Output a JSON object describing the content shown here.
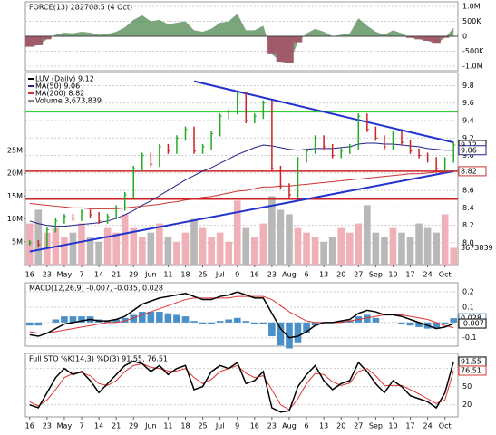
{
  "chart_data": {
    "type": "stock",
    "force": {
      "title": "FORCE(13) 282708.5 (4 Oct)",
      "ylim": [
        -1150000,
        1150000
      ],
      "yticks": [
        {
          "value": 1000000,
          "label": "1.0M"
        },
        {
          "value": 500000,
          "label": "500K"
        },
        0,
        {
          "value": -500000,
          "label": "-500K"
        },
        {
          "value": -1000000,
          "label": "-1.0M"
        }
      ],
      "last_label": "282708.5",
      "color": "#5a8f5a",
      "neg_color": "#a05a6a",
      "values": [
        -350000,
        -300000,
        -100000,
        50000,
        120000,
        100000,
        150000,
        120000,
        50000,
        80000,
        150000,
        300000,
        550000,
        700000,
        500000,
        550000,
        400000,
        450000,
        500000,
        200000,
        150000,
        250000,
        450000,
        500000,
        750000,
        200000,
        200000,
        350000,
        -600000,
        -850000,
        -900000,
        -200000,
        100000,
        250000,
        150000,
        0,
        50000,
        100000,
        600000,
        350000,
        150000,
        50000,
        200000,
        100000,
        -50000,
        -100000,
        -150000,
        -250000,
        -50000,
        282708.5
      ]
    },
    "price": {
      "legend": [
        "LUV (Daily) 9.12",
        "MA(50) 9.06",
        "MA(200) 8.82",
        "Volume 3,673,839"
      ],
      "ylim": [
        7.75,
        9.95
      ],
      "yticks": [
        {
          "value": 8.0,
          "label": "8.0"
        },
        8.2,
        8.4,
        8.6,
        8.8,
        {
          "value": 9.0,
          "label": "9.0"
        },
        9.2,
        9.4,
        9.6,
        9.8
      ],
      "vlim": [
        0,
        42000000
      ],
      "vticks": [
        {
          "value": 5000000,
          "label": "5M"
        },
        {
          "value": 10000000,
          "label": "10M"
        },
        {
          "value": 15000000,
          "label": "15M"
        },
        {
          "value": 20000000,
          "label": "20M"
        },
        {
          "value": 25000000,
          "label": "25M"
        }
      ],
      "tags": [
        {
          "value": 9.12,
          "label": "9.12"
        },
        {
          "value": 9.06,
          "label": "9.06"
        },
        {
          "value": 8.82,
          "label": "8.82"
        }
      ],
      "volume_tag": "3673839",
      "levels": [
        {
          "value": 9.5,
          "color": "#33cc33"
        },
        {
          "value": 8.82,
          "color": "#cc2222"
        },
        {
          "value": 8.5,
          "color": "#cc2222"
        }
      ],
      "trendlines": [
        {
          "from": [
            0,
            7.9
          ],
          "to": [
            49,
            8.82
          ],
          "color": "#2233cc"
        },
        {
          "from": [
            19,
            9.85
          ],
          "to": [
            49,
            9.15
          ],
          "color": "#2233cc"
        }
      ],
      "up_color": "#22aa22",
      "down_color": "#cc2222",
      "values": [
        8.0,
        7.98,
        8.15,
        8.25,
        8.3,
        8.28,
        8.35,
        8.32,
        8.25,
        8.3,
        8.4,
        8.55,
        8.85,
        9.0,
        8.9,
        9.1,
        9.05,
        9.2,
        9.3,
        9.05,
        9.1,
        9.25,
        9.45,
        9.5,
        9.7,
        9.4,
        9.45,
        9.6,
        8.85,
        8.65,
        8.55,
        8.95,
        9.05,
        9.2,
        9.1,
        9.0,
        9.05,
        9.1,
        9.45,
        9.3,
        9.2,
        9.1,
        9.25,
        9.15,
        9.05,
        9.0,
        8.95,
        8.85,
        8.95,
        9.12
      ],
      "ma50": {
        "color": "#222288",
        "values": [
          8.25,
          8.22,
          8.2,
          8.19,
          8.19,
          8.2,
          8.21,
          8.22,
          8.23,
          8.25,
          8.28,
          8.32,
          8.37,
          8.43,
          8.48,
          8.54,
          8.6,
          8.66,
          8.72,
          8.77,
          8.82,
          8.86,
          8.91,
          8.96,
          9.01,
          9.05,
          9.09,
          9.12,
          9.11,
          9.09,
          9.07,
          9.06,
          9.07,
          9.08,
          9.08,
          9.08,
          9.09,
          9.1,
          9.13,
          9.14,
          9.14,
          9.13,
          9.13,
          9.12,
          9.11,
          9.1,
          9.08,
          9.07,
          9.06,
          9.06
        ]
      },
      "ma200": {
        "color": "#cc3333",
        "values": [
          8.45,
          8.44,
          8.43,
          8.42,
          8.41,
          8.4,
          8.4,
          8.39,
          8.39,
          8.39,
          8.39,
          8.4,
          8.41,
          8.42,
          8.43,
          8.44,
          8.46,
          8.47,
          8.49,
          8.5,
          8.52,
          8.53,
          8.55,
          8.57,
          8.59,
          8.6,
          8.62,
          8.64,
          8.64,
          8.65,
          8.65,
          8.66,
          8.67,
          8.68,
          8.69,
          8.7,
          8.71,
          8.72,
          8.73,
          8.74,
          8.75,
          8.76,
          8.77,
          8.78,
          8.79,
          8.79,
          8.8,
          8.81,
          8.81,
          8.82
        ]
      },
      "volume": [
        9000000,
        12000000,
        7000000,
        8000000,
        6000000,
        7000000,
        9000000,
        6000000,
        5000000,
        8000000,
        7000000,
        11000000,
        8000000,
        6000000,
        7000000,
        9000000,
        6000000,
        5000000,
        7000000,
        10000000,
        8000000,
        6000000,
        7000000,
        5000000,
        14000000,
        8000000,
        6000000,
        9000000,
        15000000,
        12000000,
        11000000,
        8000000,
        7000000,
        6000000,
        5000000,
        6000000,
        8000000,
        7000000,
        9000000,
        13000000,
        7000000,
        6000000,
        8000000,
        7000000,
        6000000,
        9000000,
        8000000,
        7000000,
        11000000,
        3673839
      ],
      "volume_up": "#f0b0b8",
      "volume_down": "#b8b8b8"
    },
    "categories": [
      "16",
      null,
      "23",
      null,
      "May",
      null,
      "7",
      null,
      "14",
      null,
      "21",
      null,
      "29",
      null,
      "Jun",
      null,
      "11",
      null,
      "18",
      null,
      "25",
      null,
      "Jul",
      null,
      "9",
      null,
      "16",
      null,
      "23",
      null,
      "Aug",
      null,
      "6",
      null,
      "13",
      null,
      "20",
      null,
      "27",
      null,
      "Sep",
      null,
      "10",
      null,
      "17",
      null,
      "24",
      null,
      "Oct",
      null
    ],
    "macd": {
      "title": "MACD(12,26,9) -0.007, -0.035, 0.028",
      "ylim": [
        -0.155,
        0.26
      ],
      "yticks": [
        0.2,
        0.1,
        {
          "value": 0.0,
          "label": "0.0"
        },
        -0.1
      ],
      "tags": [
        {
          "value": 0.028,
          "label": "0.028"
        },
        {
          "value": -0.007,
          "label": "-0.007"
        }
      ],
      "line_color": "#000000",
      "signal_color": "#dd3333",
      "hist_color": "#4a90c8",
      "values": [
        -0.08,
        -0.09,
        -0.07,
        -0.04,
        -0.01,
        0.0,
        0.01,
        0.02,
        0.01,
        0.01,
        0.02,
        0.04,
        0.08,
        0.12,
        0.14,
        0.16,
        0.17,
        0.18,
        0.19,
        0.17,
        0.15,
        0.15,
        0.17,
        0.18,
        0.2,
        0.18,
        0.16,
        0.16,
        0.06,
        -0.04,
        -0.1,
        -0.09,
        -0.06,
        -0.02,
        0.0,
        0.0,
        0.01,
        0.02,
        0.06,
        0.08,
        0.07,
        0.05,
        0.05,
        0.04,
        0.02,
        0.0,
        -0.02,
        -0.04,
        -0.03,
        -0.007
      ],
      "signal": [
        -0.06,
        -0.07,
        -0.07,
        -0.06,
        -0.05,
        -0.04,
        -0.03,
        -0.02,
        -0.01,
        0.0,
        0.0,
        0.01,
        0.03,
        0.05,
        0.07,
        0.09,
        0.11,
        0.13,
        0.15,
        0.16,
        0.16,
        0.16,
        0.16,
        0.16,
        0.17,
        0.17,
        0.17,
        0.17,
        0.15,
        0.11,
        0.07,
        0.04,
        0.01,
        0.0,
        0.0,
        0.0,
        0.0,
        0.01,
        0.02,
        0.03,
        0.04,
        0.05,
        0.05,
        0.05,
        0.04,
        0.03,
        0.02,
        0.0,
        -0.02,
        -0.035
      ],
      "hist": [
        -0.02,
        -0.02,
        0.0,
        0.02,
        0.04,
        0.04,
        0.04,
        0.04,
        0.02,
        0.01,
        0.02,
        0.03,
        0.05,
        0.07,
        0.07,
        0.07,
        0.06,
        0.05,
        0.04,
        0.01,
        -0.01,
        -0.01,
        0.01,
        0.02,
        0.03,
        0.01,
        -0.01,
        -0.01,
        -0.09,
        -0.15,
        -0.17,
        -0.13,
        -0.07,
        -0.02,
        0.0,
        0.0,
        0.01,
        0.01,
        0.04,
        0.05,
        0.03,
        0.0,
        0.0,
        -0.01,
        -0.02,
        -0.03,
        -0.04,
        -0.04,
        -0.01,
        0.028
      ]
    },
    "sto": {
      "title": "Full STO %K(14,3) %D(3) 91.55, 76.51",
      "ylim": [
        0,
        105
      ],
      "yticks": [
        80,
        50,
        20
      ],
      "tags": [
        {
          "value": 91.55,
          "label": "91.55"
        },
        {
          "value": 76.51,
          "label": "76.51"
        }
      ],
      "k_color": "#000000",
      "d_color": "#dd3333",
      "k": [
        20,
        15,
        40,
        65,
        80,
        70,
        75,
        60,
        40,
        55,
        70,
        85,
        92,
        88,
        75,
        85,
        70,
        80,
        85,
        45,
        50,
        75,
        85,
        80,
        90,
        55,
        60,
        75,
        15,
        8,
        10,
        50,
        70,
        85,
        60,
        45,
        55,
        60,
        90,
        75,
        55,
        40,
        60,
        50,
        35,
        30,
        25,
        15,
        40,
        91.55
      ],
      "d": [
        25,
        18,
        28,
        45,
        65,
        72,
        73,
        68,
        55,
        52,
        60,
        75,
        85,
        88,
        82,
        80,
        76,
        76,
        80,
        65,
        55,
        62,
        75,
        80,
        85,
        72,
        65,
        68,
        45,
        20,
        12,
        30,
        55,
        72,
        70,
        58,
        52,
        56,
        75,
        80,
        68,
        52,
        52,
        52,
        45,
        38,
        30,
        22,
        28,
        76.51
      ]
    }
  }
}
